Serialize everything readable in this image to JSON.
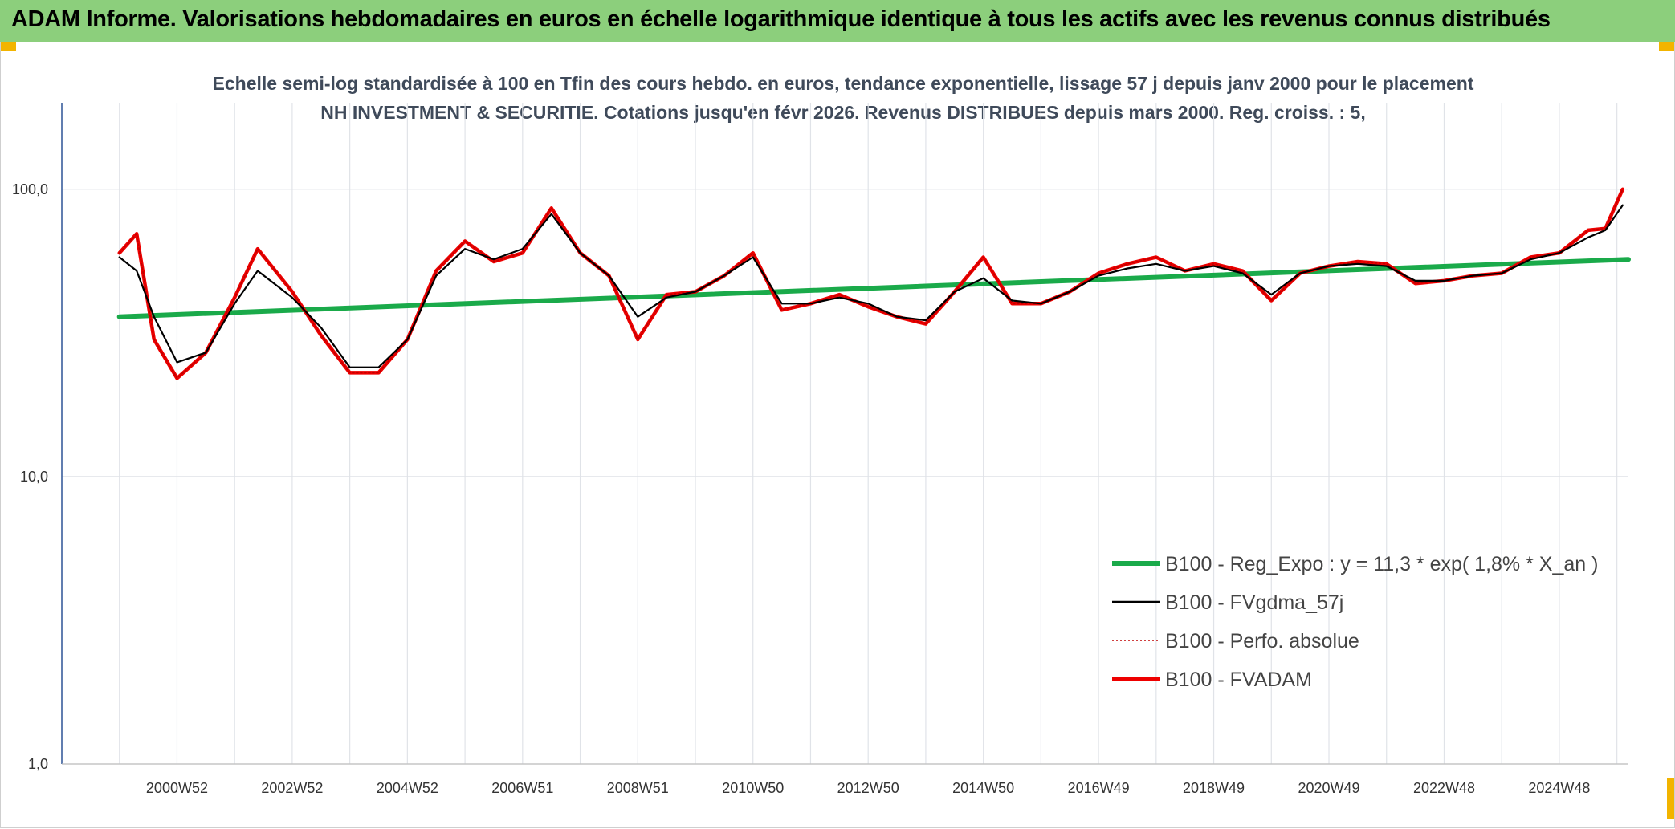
{
  "header": {
    "title": "ADAM Informe. Valorisations hebdomadaires en euros en échelle logarithmique identique à tous les actifs avec les revenus connus distribués"
  },
  "chart_data": {
    "type": "line",
    "title": "Echelle semi-log standardisée à 100 en Tfin des cours hebdo. en euros, tendance exponentielle, lissage 57 j depuis janv 2000 pour le placement NH INVESTMENT & SECURITIE. Cotations jusqu'en févr 2026. Revenus DISTRIBUES depuis mars 2000. Reg. croiss. : 5,",
    "y_scale": "log",
    "ylim": [
      1,
      200
    ],
    "y_ticks": [
      "1,0",
      "10,0",
      "100,0"
    ],
    "x_tick_labels": [
      "2000W52",
      "2002W52",
      "2004W52",
      "2006W51",
      "2008W51",
      "2010W50",
      "2012W50",
      "2014W50",
      "2016W49",
      "2018W49",
      "2020W49",
      "2022W48",
      "2024W48"
    ],
    "xlim": [
      1999.0,
      2026.2
    ],
    "grid": true,
    "legend_position": "bottom-right",
    "series": [
      {
        "name": "B100 - Reg_Expo : y = 11,3 * exp( 1,8% *  X_an )",
        "color": "#1aaa4a",
        "style": "solid-thick",
        "x": [
          2000.0,
          2026.2
        ],
        "y": [
          36,
          57
        ]
      },
      {
        "name": "B100 - FVgdma_57j",
        "color": "#000000",
        "style": "solid",
        "x": [
          2000.0,
          2000.3,
          2000.6,
          2001.0,
          2001.5,
          2002.0,
          2002.4,
          2003.0,
          2003.5,
          2004.0,
          2004.5,
          2005.0,
          2005.5,
          2006.0,
          2006.5,
          2007.0,
          2007.5,
          2008.0,
          2008.5,
          2009.0,
          2009.5,
          2010.0,
          2010.5,
          2011.0,
          2011.5,
          2012.0,
          2012.5,
          2013.0,
          2013.5,
          2014.0,
          2014.5,
          2015.0,
          2015.5,
          2016.0,
          2016.5,
          2017.0,
          2017.5,
          2018.0,
          2018.5,
          2019.0,
          2019.5,
          2020.0,
          2020.5,
          2021.0,
          2021.5,
          2022.0,
          2022.5,
          2023.0,
          2023.5,
          2024.0,
          2024.5,
          2025.0,
          2025.5,
          2025.8,
          2026.1
        ],
        "y": [
          58,
          52,
          36,
          25,
          27,
          40,
          52,
          42,
          33,
          24,
          24,
          30,
          50,
          62,
          57,
          62,
          82,
          60,
          50,
          36,
          42,
          44,
          50,
          58,
          40,
          40,
          42,
          40,
          36,
          35,
          44,
          49,
          41,
          40,
          44,
          50,
          53,
          55,
          52,
          54,
          51,
          43,
          51,
          54,
          55,
          54,
          48,
          48,
          50,
          51,
          57,
          60,
          68,
          72,
          88
        ]
      },
      {
        "name": "B100 - Perfo. absolue",
        "color": "#c00000",
        "style": "dotted",
        "x": [
          2000.0,
          2000.3,
          2000.6,
          2001.0,
          2001.5,
          2002.0,
          2002.4,
          2003.0,
          2003.5,
          2004.0,
          2004.5,
          2005.0,
          2005.5,
          2006.0,
          2006.5,
          2007.0,
          2007.5,
          2008.0,
          2008.5,
          2009.0,
          2009.5,
          2010.0,
          2010.5,
          2011.0,
          2011.5,
          2012.0,
          2012.5,
          2013.0,
          2013.5,
          2014.0,
          2014.5,
          2015.0,
          2015.5,
          2016.0,
          2016.5,
          2017.0,
          2017.5,
          2018.0,
          2018.5,
          2019.0,
          2019.5,
          2020.0,
          2020.5,
          2021.0,
          2021.5,
          2022.0,
          2022.5,
          2023.0,
          2023.5,
          2024.0,
          2024.5,
          2025.0,
          2025.5,
          2025.8,
          2026.1
        ],
        "y": [
          60,
          70,
          30,
          22,
          27,
          42,
          62,
          44,
          31,
          23,
          23,
          30,
          52,
          66,
          56,
          60,
          86,
          60,
          50,
          30,
          43,
          44,
          50,
          60,
          38,
          40,
          43,
          39,
          36,
          34,
          44,
          58,
          40,
          40,
          44,
          51,
          55,
          58,
          52,
          55,
          52,
          41,
          51,
          54,
          56,
          55,
          47,
          48,
          50,
          51,
          58,
          60,
          72,
          73,
          100
        ]
      },
      {
        "name": "B100 - FVADAM",
        "color": "#ee0000",
        "style": "solid-thick",
        "x": [
          2000.0,
          2000.3,
          2000.6,
          2001.0,
          2001.5,
          2002.0,
          2002.4,
          2003.0,
          2003.5,
          2004.0,
          2004.5,
          2005.0,
          2005.5,
          2006.0,
          2006.5,
          2007.0,
          2007.5,
          2008.0,
          2008.5,
          2009.0,
          2009.5,
          2010.0,
          2010.5,
          2011.0,
          2011.5,
          2012.0,
          2012.5,
          2013.0,
          2013.5,
          2014.0,
          2014.5,
          2015.0,
          2015.5,
          2016.0,
          2016.5,
          2017.0,
          2017.5,
          2018.0,
          2018.5,
          2019.0,
          2019.5,
          2020.0,
          2020.5,
          2021.0,
          2021.5,
          2022.0,
          2022.5,
          2023.0,
          2023.5,
          2024.0,
          2024.5,
          2025.0,
          2025.5,
          2025.8,
          2026.1
        ],
        "y": [
          60,
          70,
          30,
          22,
          27,
          42,
          62,
          44,
          31,
          23,
          23,
          30,
          52,
          66,
          56,
          60,
          86,
          60,
          50,
          30,
          43,
          44,
          50,
          60,
          38,
          40,
          43,
          39,
          36,
          34,
          44,
          58,
          40,
          40,
          44,
          51,
          55,
          58,
          52,
          55,
          52,
          41,
          51,
          54,
          56,
          55,
          47,
          48,
          50,
          51,
          58,
          60,
          72,
          73,
          100
        ]
      }
    ]
  }
}
